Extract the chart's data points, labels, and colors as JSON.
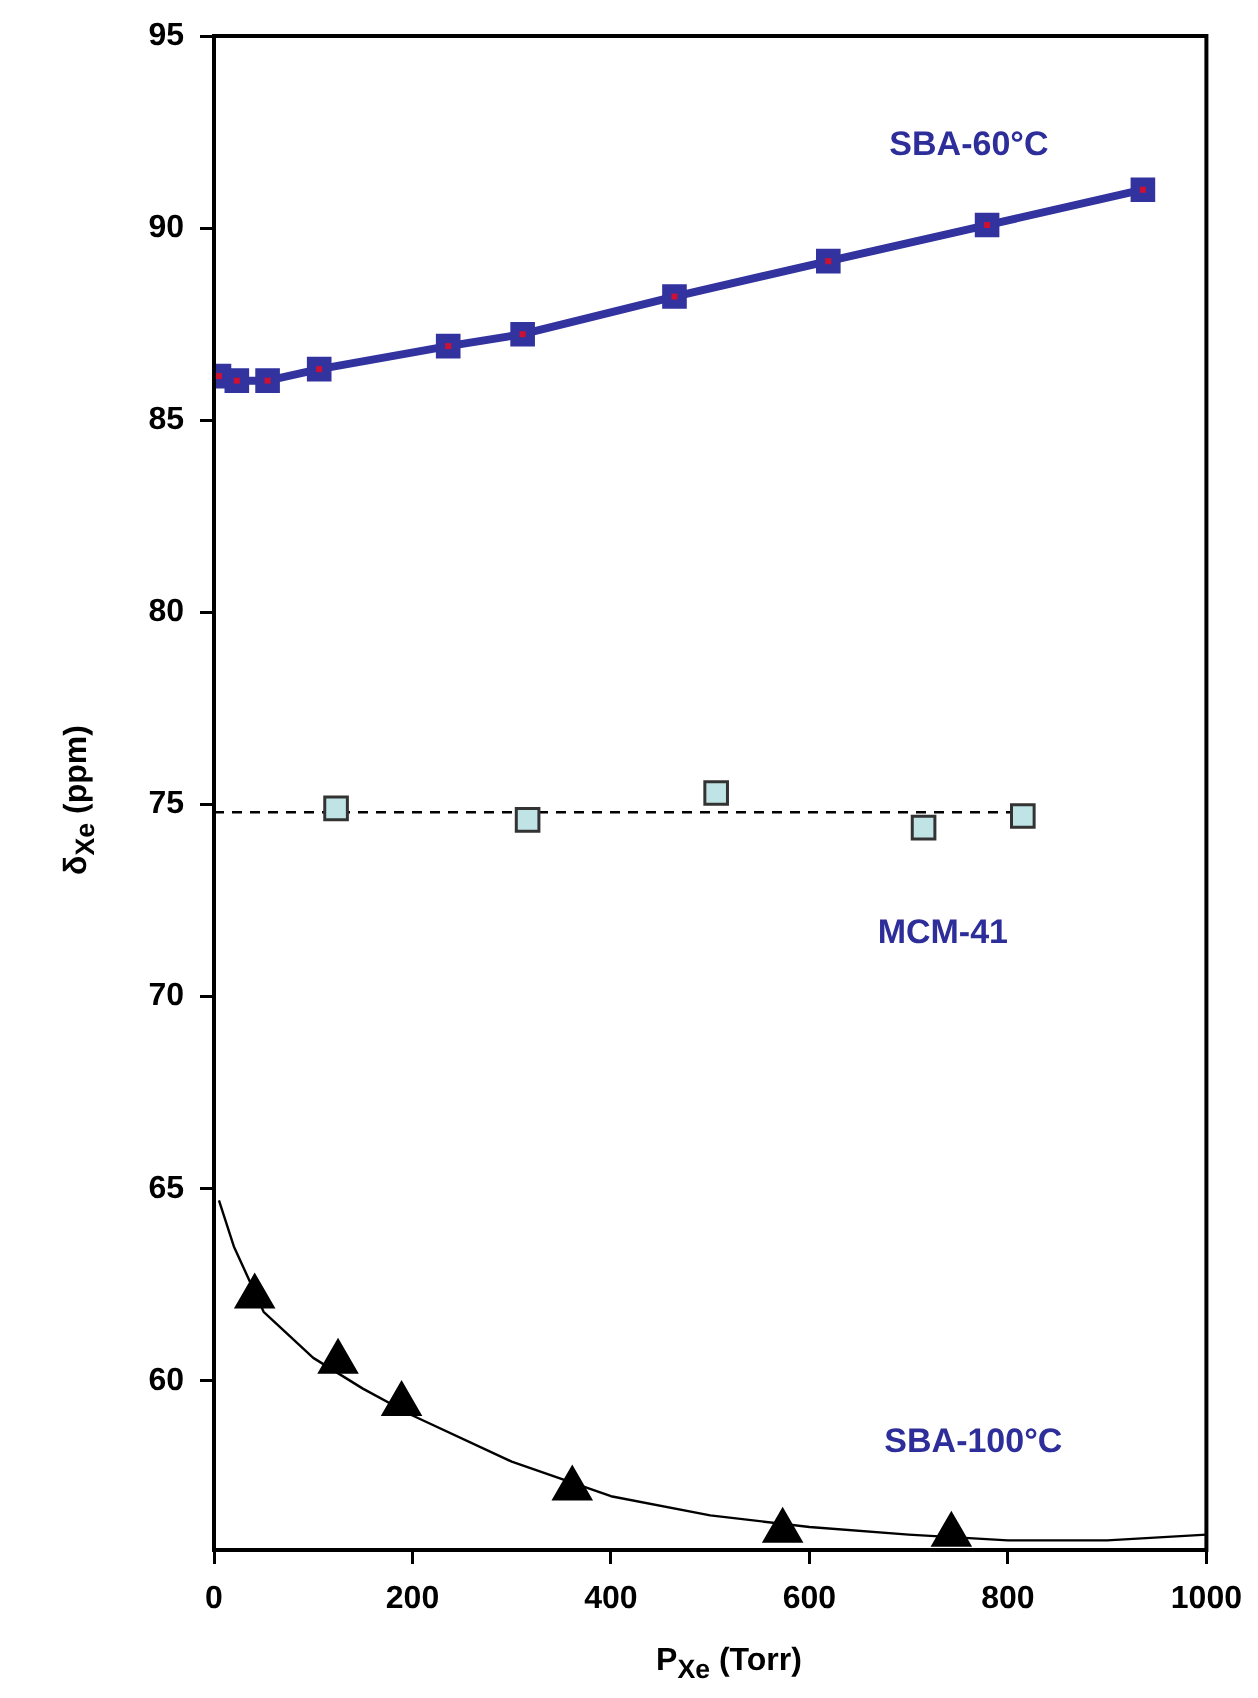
{
  "chart_data": {
    "type": "line",
    "xlabel": "P$_{Xe}$ (Torr)",
    "ylabel": "δ$_{Xe}$ (ppm)",
    "xlim": [
      0,
      1000
    ],
    "xticks": [
      0,
      200,
      400,
      600,
      800,
      1000
    ],
    "ylim": [
      55.6,
      95
    ],
    "yticks": [
      60,
      65,
      70,
      75,
      80,
      85,
      90,
      95
    ],
    "grid": false,
    "legend": false,
    "series": [
      {
        "name": "SBA-60°C",
        "color": "#3333a0",
        "marker": "square",
        "line_style": "solid",
        "x": [
          5,
          23,
          54,
          106,
          236,
          311,
          464,
          619,
          779,
          936
        ],
        "values": [
          86.15,
          86.03,
          86.03,
          86.33,
          86.93,
          87.24,
          88.22,
          89.14,
          90.08,
          91.0
        ]
      },
      {
        "name": "MCM-41",
        "type": "scatter",
        "color": "#c0e4e6",
        "marker": "square",
        "x": [
          123,
          316,
          506,
          715,
          815
        ],
        "values": [
          74.9,
          74.6,
          75.3,
          74.4,
          74.7
        ]
      },
      {
        "color": "#000000",
        "marker": "none",
        "line_style": "dashed",
        "x": [
          0,
          815
        ],
        "values": [
          74.8,
          74.8
        ]
      },
      {
        "name": "SBA-100°C",
        "type": "scatter",
        "color": "#000000",
        "marker": "triangle",
        "x": [
          41,
          125,
          189,
          361,
          573,
          743
        ],
        "values": [
          62.2,
          60.5,
          59.4,
          57.2,
          56.1,
          56.0
        ]
      },
      {
        "color": "#000000",
        "marker": "none",
        "line_style": "solid",
        "x": [
          5,
          20,
          50,
          100,
          150,
          200,
          300,
          400,
          500,
          600,
          700,
          800,
          900,
          1000
        ],
        "values": [
          64.7,
          63.5,
          61.8,
          60.6,
          59.8,
          59.1,
          57.9,
          57.0,
          56.5,
          56.2,
          56.0,
          55.85,
          55.85,
          56.0
        ]
      }
    ]
  }
}
